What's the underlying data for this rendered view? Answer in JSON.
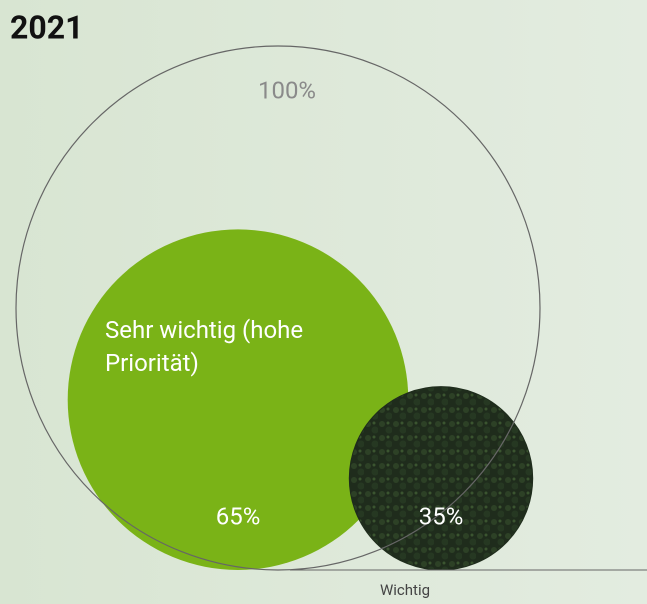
{
  "chart_data": {
    "type": "circles",
    "title": "2021",
    "total": 100,
    "total_label": "100%",
    "categories": [
      "Sehr wichtig (hohe Priorität)",
      "Wichtig"
    ],
    "values": [
      65,
      35
    ],
    "value_labels": [
      "65%",
      "35%"
    ],
    "colors": [
      "#7ab317",
      "#1f2c1c"
    ]
  }
}
